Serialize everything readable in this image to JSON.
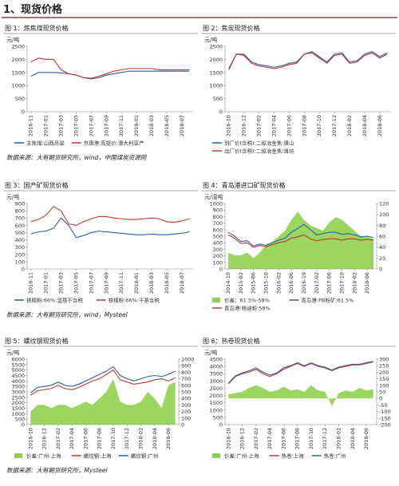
{
  "heading": "1、现货价格",
  "chart_data": [
    {
      "type": "line",
      "label": "图 1：炼焦煤现货价格",
      "unit": "元/吨",
      "categories": [
        "2016-11",
        null,
        "2017-01",
        null,
        "2017-03",
        null,
        "2017-05",
        null,
        "2017-07",
        null,
        "2017-09",
        null,
        "2017-11",
        null,
        "2018-01",
        null,
        "2018-03",
        null,
        "2018-05",
        null,
        "2018-07",
        null
      ],
      "ylim": [
        0,
        2500
      ],
      "yticks": [
        0,
        500,
        1000,
        1500,
        2000,
        2500
      ],
      "series": [
        {
          "name": "主焦煤:山西吕梁",
          "color": "#2f5fb0",
          "type": "line",
          "values": [
            1350,
            1500,
            1500,
            1500,
            1480,
            1450,
            1400,
            1300,
            1250,
            1300,
            1400,
            1450,
            1500,
            1550,
            1550,
            1550,
            1550,
            1550,
            1550,
            1550,
            1550,
            1550
          ]
        },
        {
          "name": "京唐港:库提价:澳大利亚产",
          "color": "#c0392b",
          "type": "line",
          "values": [
            1900,
            2050,
            2000,
            2000,
            1600,
            1450,
            1400,
            1300,
            1280,
            1350,
            1450,
            1550,
            1600,
            1650,
            1650,
            1650,
            1650,
            1600,
            1600,
            1600,
            1600,
            1600
          ]
        }
      ],
      "source": "数据来源：大有期货研究所，wind，中国煤炭资源网"
    },
    {
      "type": "line",
      "label": "图 2：焦炭现货价格",
      "unit": "元/吨",
      "categories": [
        "2016-10",
        null,
        "2016-12",
        null,
        "2017-02",
        null,
        "2017-04",
        null,
        "2017-06",
        null,
        "2017-08",
        null,
        "2017-10",
        null,
        "2017-12",
        null,
        "2018-02",
        null,
        "2018-04",
        null,
        "2018-06",
        null
      ],
      "ylim": [
        0,
        2500
      ],
      "yticks": [
        0,
        500,
        1000,
        1500,
        2000,
        2500
      ],
      "series": [
        {
          "name": "到厂价(含税):二级冶金焦:唐山",
          "color": "#2f5fb0",
          "type": "line",
          "values": [
            1600,
            2200,
            2200,
            1900,
            1800,
            1750,
            1700,
            1750,
            1850,
            1900,
            2200,
            2300,
            2100,
            1900,
            2200,
            2250,
            1900,
            1950,
            2200,
            2300,
            2100,
            2250
          ]
        },
        {
          "name": "出厂价(含税):二级冶金焦:潍坊",
          "color": "#c0392b",
          "type": "line",
          "values": [
            1650,
            2200,
            2150,
            1850,
            1750,
            1700,
            1650,
            1700,
            1800,
            1850,
            2200,
            2250,
            2050,
            1850,
            2150,
            2200,
            1850,
            1900,
            2150,
            2250,
            2050,
            2200
          ]
        }
      ]
    },
    {
      "type": "line",
      "label": "图 3：国产矿现货价格",
      "unit": "元/吨",
      "categories": [
        "2016-11",
        null,
        "2017-01",
        null,
        "2017-03",
        null,
        "2017-05",
        null,
        "2017-07",
        null,
        "2017-09",
        null,
        "2017-11",
        null,
        "2018-01",
        null,
        "2018-03",
        null,
        "2018-05",
        null,
        "2018-07",
        null
      ],
      "ylim": [
        0,
        900
      ],
      "yticks": [
        0,
        100,
        200,
        300,
        400,
        500,
        600,
        700,
        800,
        900
      ],
      "series": [
        {
          "name": "铁精粉:66%:湿基不含税",
          "color": "#2f5fb0",
          "type": "line",
          "values": [
            480,
            510,
            520,
            560,
            700,
            600,
            430,
            460,
            500,
            520,
            510,
            500,
            490,
            480,
            470,
            470,
            480,
            470,
            470,
            480,
            490,
            510
          ]
        },
        {
          "name": "铁精粉:66%:干基含税",
          "color": "#c0392b",
          "type": "line",
          "values": [
            650,
            680,
            740,
            860,
            800,
            620,
            600,
            650,
            690,
            720,
            720,
            700,
            690,
            680,
            680,
            690,
            700,
            690,
            650,
            640,
            660,
            690
          ]
        }
      ],
      "source": "数据来源：大有期货研究所，wind，Mysteel"
    },
    {
      "type": "line",
      "label": "图 4：青岛港进口矿现货价格",
      "unit": "元/湿吨",
      "categories": [
        "2014-10",
        null,
        "2015-02",
        null,
        "2015-06",
        null,
        "2015-10",
        null,
        "2016-02",
        null,
        "2016-06",
        null,
        "2016-10",
        null,
        "2017-02",
        null,
        "2017-06",
        null,
        "2017-10",
        null,
        "2018-02",
        null,
        "2018-06",
        null
      ],
      "ylim": [
        0,
        1000
      ],
      "yticks": [
        0,
        100,
        200,
        300,
        400,
        500,
        600,
        700,
        800,
        900,
        1000
      ],
      "y2lim": [
        0,
        120
      ],
      "y2ticks": [
        0,
        20,
        40,
        60,
        80,
        100,
        120
      ],
      "series": [
        {
          "name": "价差：61.5%-58%",
          "color": "#8fd14f",
          "type": "area",
          "axis": "y2",
          "values": [
            30,
            25,
            25,
            30,
            20,
            30,
            45,
            50,
            60,
            70,
            90,
            105,
            90,
            80,
            75,
            70,
            85,
            95,
            90,
            80,
            70,
            60,
            60,
            55
          ]
        },
        {
          "name": "青岛港:PB粉矿:61.5%",
          "color": "#2f5fb0",
          "type": "line",
          "values": [
            560,
            500,
            420,
            430,
            350,
            380,
            360,
            400,
            440,
            470,
            560,
            620,
            680,
            600,
            520,
            540,
            560,
            560,
            530,
            540,
            520,
            490,
            500,
            480
          ]
        },
        {
          "name": "青岛港:杨迪粉:58%",
          "color": "#c0392b",
          "type": "line",
          "values": [
            520,
            470,
            390,
            400,
            330,
            360,
            340,
            370,
            400,
            420,
            470,
            490,
            520,
            460,
            430,
            450,
            460,
            460,
            440,
            460,
            460,
            440,
            450,
            440
          ]
        }
      ]
    },
    {
      "type": "line",
      "label": "图 5：螺纹钢现货价格",
      "unit": "元/吨",
      "categories": [
        "2016-10",
        null,
        "2016-12",
        null,
        "2017-02",
        null,
        "2017-04",
        null,
        "2017-06",
        null,
        "2017-08",
        null,
        "2017-10",
        null,
        "2017-12",
        null,
        "2018-02",
        null,
        "2018-04",
        null,
        "2018-06",
        null
      ],
      "ylim": [
        0,
        6000
      ],
      "yticks": [
        0,
        500,
        1000,
        1500,
        2000,
        2500,
        3000,
        3500,
        4000,
        4500,
        5000,
        5500,
        6000
      ],
      "y2lim": [
        0,
        1000
      ],
      "y2ticks": [
        0,
        100,
        200,
        300,
        400,
        500,
        600,
        700,
        800,
        900,
        1000
      ],
      "series": [
        {
          "name": "价差:广州-上海",
          "color": "#8fd14f",
          "type": "area",
          "axis": "y2",
          "values": [
            200,
            300,
            300,
            250,
            300,
            300,
            250,
            300,
            350,
            300,
            400,
            500,
            700,
            350,
            300,
            300,
            350,
            500,
            400,
            250,
            600,
            650
          ]
        },
        {
          "name": "螺纹钢:上海",
          "color": "#c0392b",
          "type": "line",
          "values": [
            2700,
            3100,
            3200,
            3300,
            3600,
            3300,
            3200,
            3400,
            3700,
            4000,
            4200,
            4600,
            5000,
            4100,
            3900,
            3700,
            3800,
            3900,
            4100,
            4200,
            4000,
            4300
          ]
        },
        {
          "name": "螺纹钢:广州",
          "color": "#2f5fb0",
          "type": "line",
          "values": [
            2900,
            3400,
            3500,
            3600,
            3900,
            3600,
            3500,
            3700,
            4000,
            4300,
            4600,
            4900,
            5300,
            4500,
            4200,
            4000,
            4200,
            4400,
            4500,
            4400,
            4600,
            4900
          ]
        }
      ],
      "source": "数据来源：大有期货研究所，Mysteel"
    },
    {
      "type": "line",
      "label": "图 6：热卷现货价格",
      "unit": "元/吨",
      "categories": [
        "2016-10",
        null,
        "2016-12",
        null,
        "2017-02",
        null,
        "2017-04",
        null,
        "2017-06",
        null,
        "2017-08",
        null,
        "2017-10",
        null,
        "2017-12",
        null,
        "2018-02",
        null,
        "2018-04",
        null,
        "2018-06",
        null
      ],
      "ylim": [
        0,
        4500
      ],
      "yticks": [
        0,
        500,
        1000,
        1500,
        2000,
        2500,
        3000,
        3500,
        4000,
        4500
      ],
      "y2lim": [
        -200,
        300
      ],
      "y2ticks": [
        -200,
        -150,
        -100,
        -50,
        0,
        50,
        100,
        150,
        200,
        250,
        300
      ],
      "series": [
        {
          "name": "价差:广州-上海",
          "color": "#8fd14f",
          "type": "area",
          "axis": "y2",
          "values": [
            30,
            40,
            50,
            80,
            100,
            80,
            50,
            60,
            90,
            60,
            70,
            50,
            100,
            60,
            50,
            -60,
            40,
            60,
            50,
            80,
            60,
            70
          ]
        },
        {
          "name": "热卷:上海",
          "color": "#c0392b",
          "type": "line",
          "values": [
            2800,
            3300,
            3500,
            3600,
            3800,
            3500,
            3300,
            3500,
            3800,
            4000,
            4200,
            4000,
            4200,
            4000,
            3900,
            3700,
            3900,
            4000,
            4100,
            4100,
            4200,
            4300
          ]
        },
        {
          "name": "热卷:广州",
          "color": "#2f5fb0",
          "type": "line",
          "values": [
            2850,
            3350,
            3550,
            3700,
            3900,
            3600,
            3400,
            3550,
            3900,
            4050,
            4250,
            4050,
            4250,
            4050,
            3950,
            3750,
            3950,
            4050,
            4150,
            4150,
            4250,
            4350
          ]
        }
      ]
    }
  ]
}
